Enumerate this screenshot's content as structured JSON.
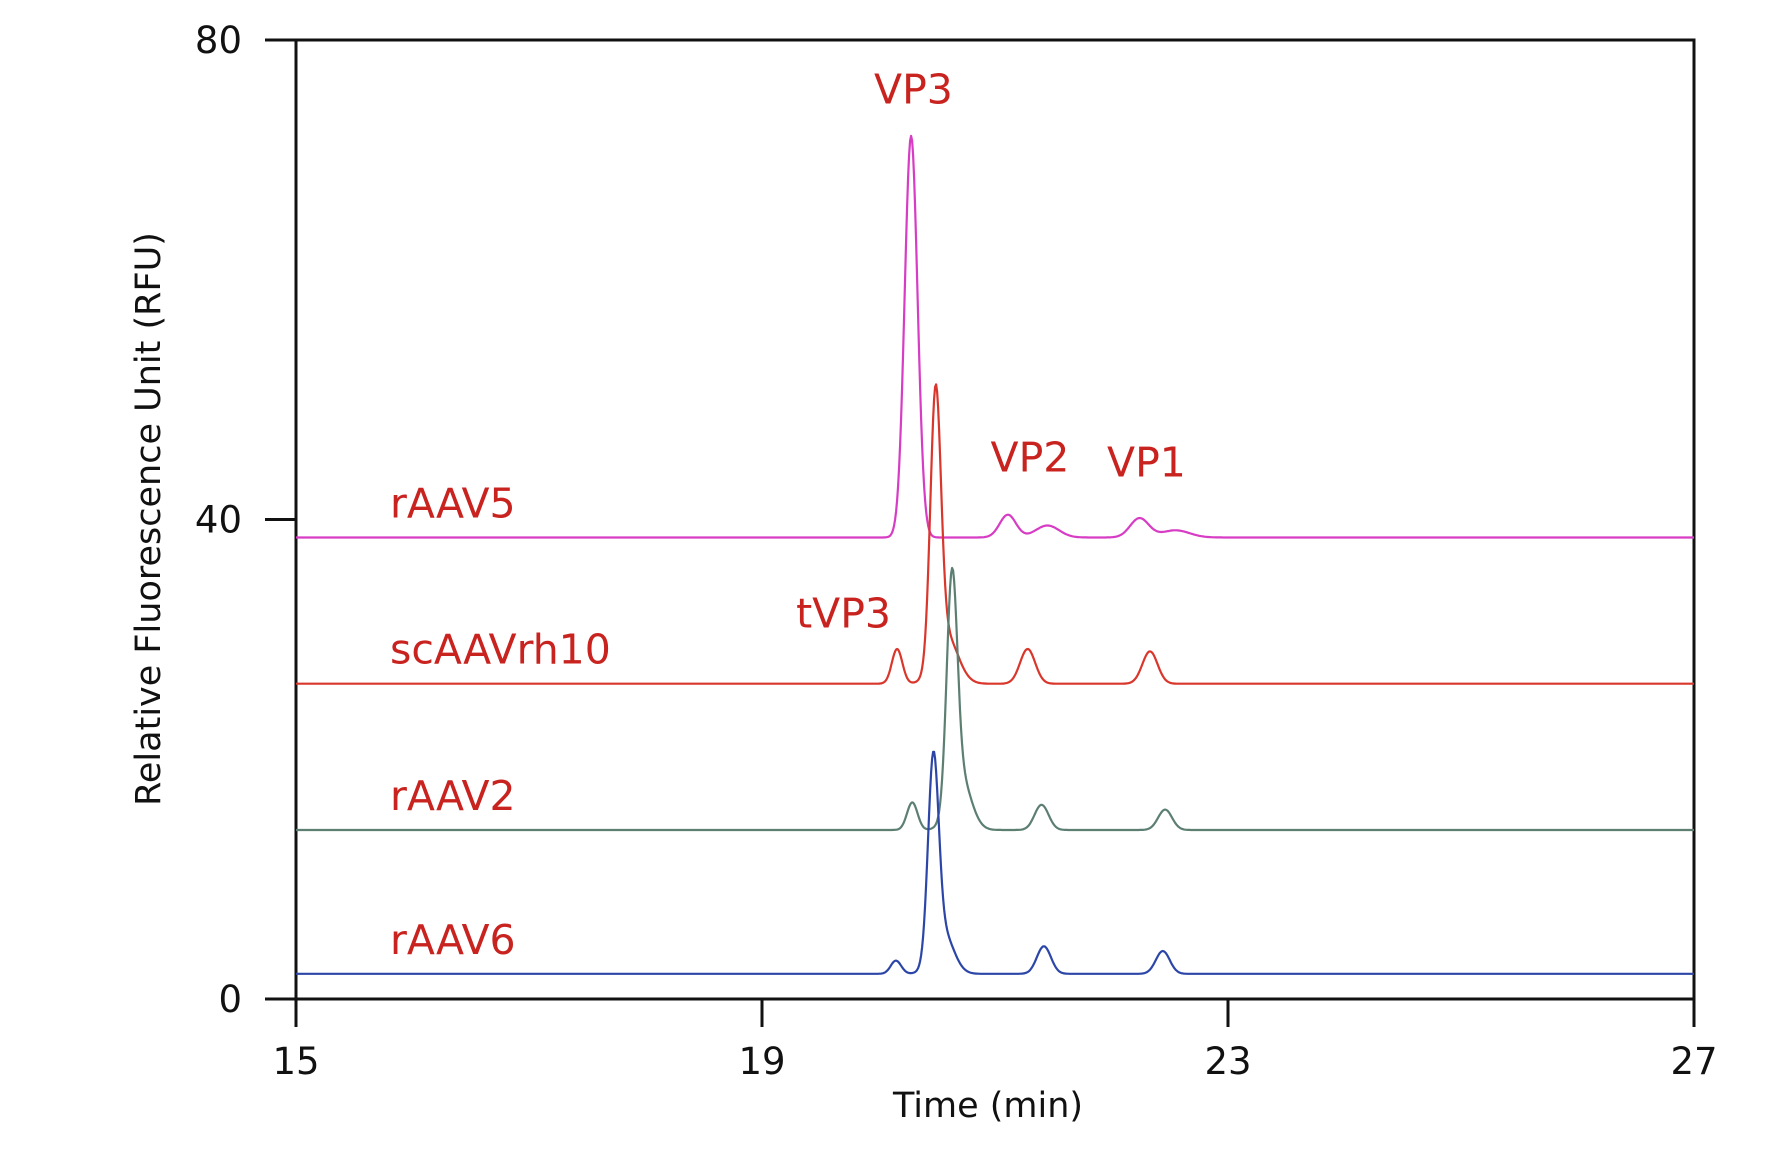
{
  "chart_data": {
    "type": "line",
    "title": "",
    "xlabel": "Time (min)",
    "ylabel": "Relative Fluorescence Unit (RFU)",
    "xlim": [
      15,
      27
    ],
    "ylim": [
      0,
      80
    ],
    "x_ticks": [
      15,
      19,
      23,
      27
    ],
    "y_ticks": [
      0,
      40,
      80
    ],
    "grid": false,
    "legend": "none (series labelled inline)",
    "label_color": "#c8231f",
    "series": [
      {
        "name": "rAAV5",
        "color": "#d63cc4",
        "baseline": 38.5,
        "peaks": [
          {
            "x": 20.28,
            "h": 33.5,
            "w": 0.055
          },
          {
            "x": 21.11,
            "h": 1.9,
            "w": 0.07
          },
          {
            "x": 21.45,
            "h": 1.0,
            "w": 0.1
          },
          {
            "x": 22.24,
            "h": 1.6,
            "w": 0.08
          },
          {
            "x": 22.55,
            "h": 0.6,
            "w": 0.12
          }
        ]
      },
      {
        "name": "scAAVrh10",
        "color": "#d9362c",
        "baseline": 26.3,
        "peaks": [
          {
            "x": 20.16,
            "h": 2.9,
            "w": 0.045
          },
          {
            "x": 20.49,
            "h": 22.3,
            "w": 0.045
          },
          {
            "x": 20.58,
            "h": 4.0,
            "w": 0.1
          },
          {
            "x": 21.28,
            "h": 2.9,
            "w": 0.065
          },
          {
            "x": 22.33,
            "h": 2.7,
            "w": 0.065
          }
        ]
      },
      {
        "name": "rAAV2",
        "color": "#5c7f72",
        "baseline": 14.1,
        "peaks": [
          {
            "x": 20.29,
            "h": 2.3,
            "w": 0.045
          },
          {
            "x": 20.63,
            "h": 18.5,
            "w": 0.045
          },
          {
            "x": 20.7,
            "h": 4.5,
            "w": 0.09
          },
          {
            "x": 21.4,
            "h": 2.1,
            "w": 0.06
          },
          {
            "x": 22.46,
            "h": 1.7,
            "w": 0.06
          }
        ]
      },
      {
        "name": "rAAV6",
        "color": "#2c46a8",
        "baseline": 2.1,
        "peaks": [
          {
            "x": 20.15,
            "h": 1.1,
            "w": 0.045
          },
          {
            "x": 20.47,
            "h": 16.2,
            "w": 0.045
          },
          {
            "x": 20.55,
            "h": 3.5,
            "w": 0.09
          },
          {
            "x": 21.42,
            "h": 2.3,
            "w": 0.06
          },
          {
            "x": 22.44,
            "h": 1.9,
            "w": 0.06
          }
        ]
      }
    ],
    "annotations": [
      {
        "text": "VP3",
        "x": 20.3,
        "y": 74.7
      },
      {
        "text": "VP2",
        "x": 21.3,
        "y": 44.0
      },
      {
        "text": "VP1",
        "x": 22.3,
        "y": 43.6
      },
      {
        "text": "tVP3",
        "x": 19.7,
        "y": 31.0
      }
    ]
  }
}
